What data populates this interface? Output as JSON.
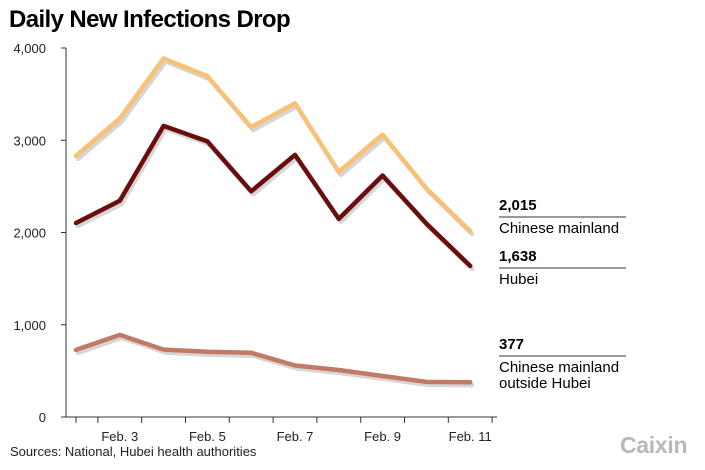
{
  "title": "Daily New Infections Drop",
  "source": "Sources: National, Hubei health authorities",
  "brand": "Caixin",
  "colors": {
    "chinese_mainland": "#f7c276",
    "hubei": "#6b0d0d",
    "outside_hubei": "#c27a66",
    "axis": "#333333"
  },
  "chart_data": {
    "type": "line",
    "x": [
      "Feb. 2",
      "Feb. 3",
      "Feb. 4",
      "Feb. 5",
      "Feb. 6",
      "Feb. 7",
      "Feb. 8",
      "Feb. 9",
      "Feb. 10",
      "Feb. 11"
    ],
    "x_tick_labels": [
      "Feb. 3",
      "Feb. 5",
      "Feb. 7",
      "Feb. 9",
      "Feb. 11"
    ],
    "y_tick_labels": [
      "0",
      "1,000",
      "2,000",
      "3,000",
      "4,000"
    ],
    "ylim": [
      0,
      4000
    ],
    "grid": false,
    "series": [
      {
        "name": "Chinese mainland",
        "values": [
          2830,
          3235,
          3887,
          3694,
          3143,
          3399,
          2656,
          3062,
          2478,
          2015
        ],
        "end_value_label": "2,015",
        "end_name_lines": [
          "Chinese mainland"
        ]
      },
      {
        "name": "Hubei",
        "values": [
          2103,
          2345,
          3156,
          2987,
          2447,
          2841,
          2147,
          2618,
          2097,
          1638
        ],
        "end_value_label": "1,638",
        "end_name_lines": [
          "Hubei"
        ]
      },
      {
        "name": "Chinese mainland outside Hubei",
        "values": [
          727,
          890,
          731,
          707,
          696,
          558,
          509,
          444,
          381,
          377
        ],
        "end_value_label": "377",
        "end_name_lines": [
          "Chinese mainland",
          "outside Hubei"
        ]
      }
    ]
  }
}
